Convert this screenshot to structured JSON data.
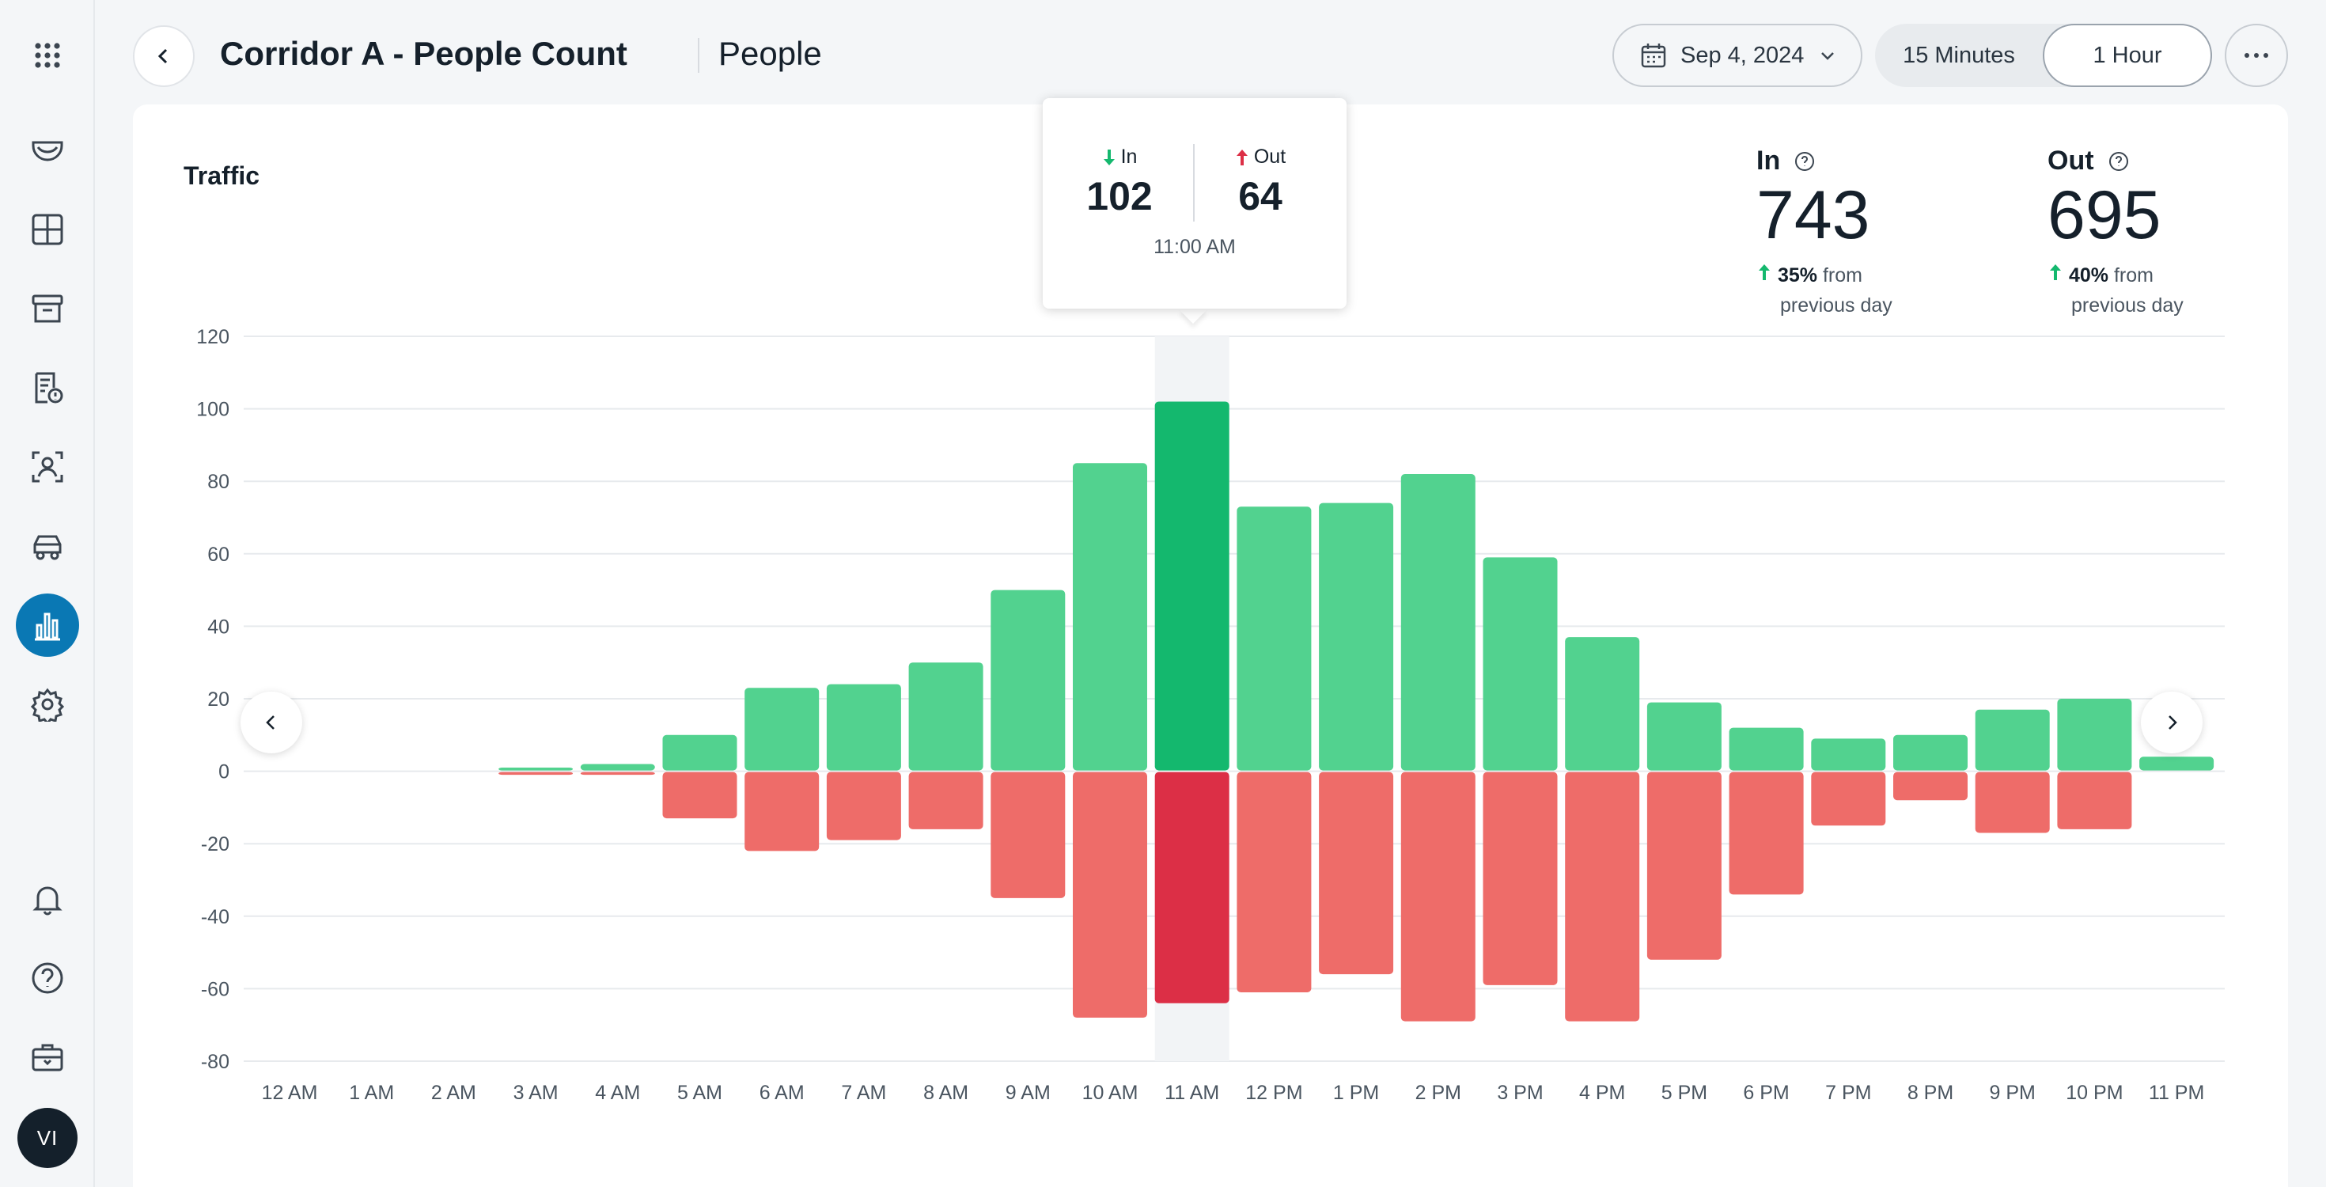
{
  "header": {
    "title": "Corridor A - People Count",
    "subtitle": "People",
    "date": "Sep 4, 2024",
    "interval_options": [
      "15 Minutes",
      "1 Hour"
    ],
    "selected_interval": "1 Hour",
    "more_label": "···"
  },
  "sidebar": {
    "items": [
      {
        "icon": "apps-grid-icon"
      },
      {
        "icon": "camera-icon"
      },
      {
        "icon": "layout-grid-icon"
      },
      {
        "icon": "archive-icon"
      },
      {
        "icon": "report-alert-icon"
      },
      {
        "icon": "face-scan-icon"
      },
      {
        "icon": "vehicle-icon"
      },
      {
        "icon": "analytics-icon",
        "active": true
      },
      {
        "icon": "settings-icon"
      },
      {
        "icon": "bell-icon"
      },
      {
        "icon": "help-icon"
      },
      {
        "icon": "toolbox-icon"
      }
    ],
    "avatar_initials": "VI"
  },
  "card": {
    "title": "Traffic",
    "kpis": {
      "in": {
        "label": "In",
        "value": "743",
        "delta_pct": "35%",
        "delta_text": "from",
        "delta_text2": "previous day"
      },
      "out": {
        "label": "Out",
        "value": "695",
        "delta_pct": "40%",
        "delta_text": "from",
        "delta_text2": "previous day"
      }
    }
  },
  "tooltip": {
    "in_label": "In",
    "in_value": "102",
    "out_label": "Out",
    "out_value": "64",
    "time": "11:00 AM"
  },
  "colors": {
    "in": "#52d28f",
    "in_highlight": "#14b86e",
    "out": "#ee6c69",
    "out_highlight": "#dc2f46",
    "accent": "#0a78b4",
    "up_arrow": "#14b86e",
    "down_arrow": "#dc2f46"
  },
  "chart_data": {
    "type": "bar",
    "title": "Traffic",
    "categories": [
      "12 AM",
      "1 AM",
      "2 AM",
      "3 AM",
      "4 AM",
      "5 AM",
      "6 AM",
      "7 AM",
      "8 AM",
      "9 AM",
      "10 AM",
      "11 AM",
      "12 PM",
      "1 PM",
      "2 PM",
      "3 PM",
      "4 PM",
      "5 PM",
      "6 PM",
      "7 PM",
      "8 PM",
      "9 PM",
      "10 PM",
      "11 PM"
    ],
    "series": [
      {
        "name": "In",
        "values": [
          0,
          0,
          0,
          1,
          2,
          10,
          23,
          24,
          30,
          50,
          85,
          102,
          73,
          74,
          82,
          59,
          37,
          19,
          12,
          9,
          10,
          17,
          20,
          4
        ]
      },
      {
        "name": "Out",
        "values": [
          0,
          0,
          0,
          -1,
          -1,
          -13,
          -22,
          -19,
          -16,
          -35,
          -68,
          -64,
          -61,
          -56,
          -69,
          -59,
          -69,
          -52,
          -34,
          -15,
          -8,
          -17,
          -16,
          0
        ]
      }
    ],
    "yticks": [
      120,
      100,
      80,
      60,
      40,
      20,
      0,
      -20,
      -40,
      -60,
      -80
    ],
    "ylim": [
      -80,
      120
    ],
    "highlight_category": "11 AM",
    "grid": true
  }
}
